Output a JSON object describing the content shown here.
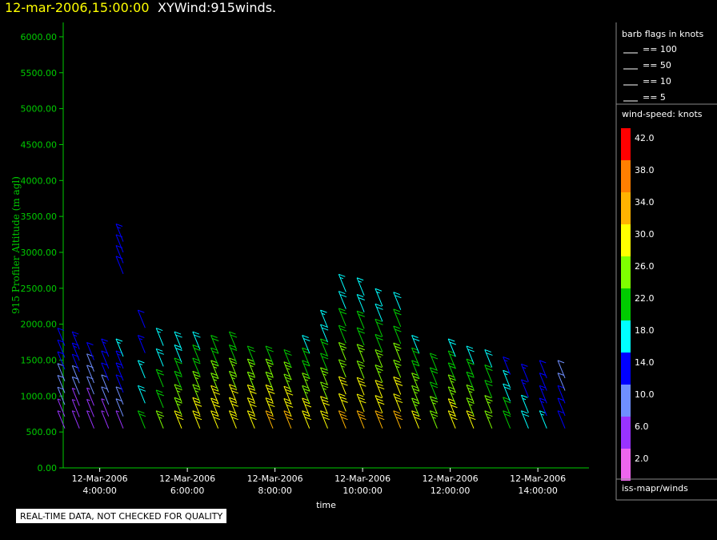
{
  "header": {
    "datetime": "12-mar-2006,15:00:00",
    "title": "XYWind:915winds."
  },
  "notice": "REAL-TIME DATA, NOT CHECKED FOR QUALITY",
  "source_label": "iss-mapr/winds",
  "colors": {
    "axis": "#00cc00",
    "background": "#000000",
    "text": "#ffffff"
  },
  "barb_legend": {
    "title": "barb flags in knots",
    "items": [
      "== 100",
      "== 50",
      "== 10",
      "== 5"
    ]
  },
  "speed_legend": {
    "title": "wind-speed: knots",
    "bins": [
      {
        "label": "42.0",
        "color": "#ff0000"
      },
      {
        "label": "38.0",
        "color": "#ff7f00"
      },
      {
        "label": "34.0",
        "color": "#ffb300"
      },
      {
        "label": "30.0",
        "color": "#ffff00"
      },
      {
        "label": "26.0",
        "color": "#7fff00"
      },
      {
        "label": "22.0",
        "color": "#00cc00"
      },
      {
        "label": "18.0",
        "color": "#00ffff"
      },
      {
        "label": "14.0",
        "color": "#0000ff"
      },
      {
        "label": "10.0",
        "color": "#6f8fff"
      },
      {
        "label": "6.0",
        "color": "#9933ff"
      },
      {
        "label": "2.0",
        "color": "#ee66ee"
      }
    ]
  },
  "chart_data": {
    "type": "scatter",
    "ylabel": "915 Profiler Altitude (m agl)",
    "xlabel": "time",
    "ylim": [
      0,
      6200
    ],
    "yticks": [
      "0.00",
      "500.00",
      "1000.00",
      "1500.00",
      "2000.00",
      "2500.00",
      "3000.00",
      "3500.00",
      "4000.00",
      "4500.00",
      "5000.00",
      "5500.00",
      "6000.00"
    ],
    "xlim": [
      "03:10",
      "15:10"
    ],
    "xticks": [
      {
        "date": "12-Mar-2006",
        "time": "4:00:00"
      },
      {
        "date": "12-Mar-2006",
        "time": "6:00:00"
      },
      {
        "date": "12-Mar-2006",
        "time": "8:00:00"
      },
      {
        "date": "12-Mar-2006",
        "time": "10:00:00"
      },
      {
        "date": "12-Mar-2006",
        "time": "12:00:00"
      },
      {
        "date": "12-Mar-2006",
        "time": "14:00:00"
      }
    ],
    "profiles": [
      {
        "time": "03:10",
        "top": 1700,
        "speeds": [
          6,
          6,
          8,
          10,
          10,
          12,
          12,
          12
        ]
      },
      {
        "time": "03:30",
        "top": 1650,
        "speeds": [
          4,
          6,
          6,
          8,
          10,
          12,
          14,
          14
        ]
      },
      {
        "time": "03:50",
        "top": 1500,
        "speeds": [
          4,
          4,
          6,
          8,
          10,
          10,
          12
        ]
      },
      {
        "time": "04:10",
        "top": 1550,
        "speeds": [
          6,
          6,
          8,
          10,
          12,
          12,
          14
        ]
      },
      {
        "time": "04:30",
        "top": 1550,
        "speeds": [
          6,
          8,
          10,
          12,
          14,
          14,
          16
        ]
      },
      {
        "time": "04:30",
        "top": 3150,
        "bottom": 2700,
        "speeds": [
          12,
          12,
          12,
          14
        ]
      },
      {
        "time": "05:00",
        "top": 1950,
        "speeds": [
          20,
          18,
          16,
          14,
          12
        ]
      },
      {
        "time": "05:25",
        "top": 1700,
        "speeds": [
          24,
          22,
          20,
          18,
          16
        ]
      },
      {
        "time": "05:50",
        "top": 1650,
        "speeds": [
          28,
          26,
          24,
          22,
          20,
          18,
          18
        ]
      },
      {
        "time": "06:15",
        "top": 1650,
        "speeds": [
          30,
          28,
          26,
          24,
          22,
          20,
          18
        ]
      },
      {
        "time": "06:40",
        "top": 1600,
        "speeds": [
          30,
          28,
          28,
          26,
          24,
          22,
          20
        ]
      },
      {
        "time": "07:05",
        "top": 1650,
        "speeds": [
          30,
          28,
          28,
          26,
          24,
          22,
          22
        ]
      },
      {
        "time": "07:30",
        "top": 1450,
        "speeds": [
          30,
          30,
          28,
          26,
          24,
          22
        ]
      },
      {
        "time": "07:55",
        "top": 1450,
        "speeds": [
          32,
          30,
          28,
          26,
          24,
          22
        ]
      },
      {
        "time": "08:20",
        "top": 1400,
        "speeds": [
          32,
          30,
          28,
          26,
          24,
          22
        ]
      },
      {
        "time": "08:45",
        "top": 1600,
        "speeds": [
          30,
          28,
          26,
          24,
          22,
          20,
          18
        ]
      },
      {
        "time": "09:10",
        "top": 1950,
        "speeds": [
          30,
          28,
          26,
          24,
          22,
          20,
          18,
          16
        ]
      },
      {
        "time": "09:35",
        "top": 2450,
        "speeds": [
          32,
          30,
          28,
          26,
          24,
          22,
          20,
          18,
          16
        ]
      },
      {
        "time": "10:00",
        "top": 2400,
        "speeds": [
          32,
          30,
          28,
          26,
          24,
          22,
          20,
          18,
          16
        ]
      },
      {
        "time": "10:25",
        "top": 2250,
        "speeds": [
          32,
          30,
          28,
          26,
          24,
          22,
          20,
          18,
          16
        ]
      },
      {
        "time": "10:50",
        "top": 2200,
        "speeds": [
          32,
          30,
          28,
          26,
          24,
          22,
          20,
          18
        ]
      },
      {
        "time": "11:15",
        "top": 1600,
        "speeds": [
          28,
          26,
          26,
          24,
          22,
          20,
          18
        ]
      },
      {
        "time": "11:40",
        "top": 1350,
        "speeds": [
          26,
          24,
          22,
          22,
          20
        ]
      },
      {
        "time": "12:05",
        "top": 1550,
        "speeds": [
          30,
          28,
          26,
          24,
          22,
          20,
          18
        ]
      },
      {
        "time": "12:30",
        "top": 1450,
        "speeds": [
          28,
          26,
          24,
          22,
          20,
          18
        ]
      },
      {
        "time": "12:55",
        "top": 1400,
        "speeds": [
          26,
          24,
          22,
          20,
          18
        ]
      },
      {
        "time": "13:20",
        "top": 1300,
        "speeds": [
          22,
          20,
          18,
          16,
          14
        ]
      },
      {
        "time": "13:45",
        "top": 1200,
        "speeds": [
          18,
          16,
          14,
          14
        ]
      },
      {
        "time": "14:10",
        "top": 1250,
        "speeds": [
          16,
          14,
          14,
          12,
          12
        ]
      },
      {
        "time": "14:35",
        "top": 1250,
        "speeds": [
          12,
          12,
          12,
          10,
          10
        ]
      }
    ]
  }
}
